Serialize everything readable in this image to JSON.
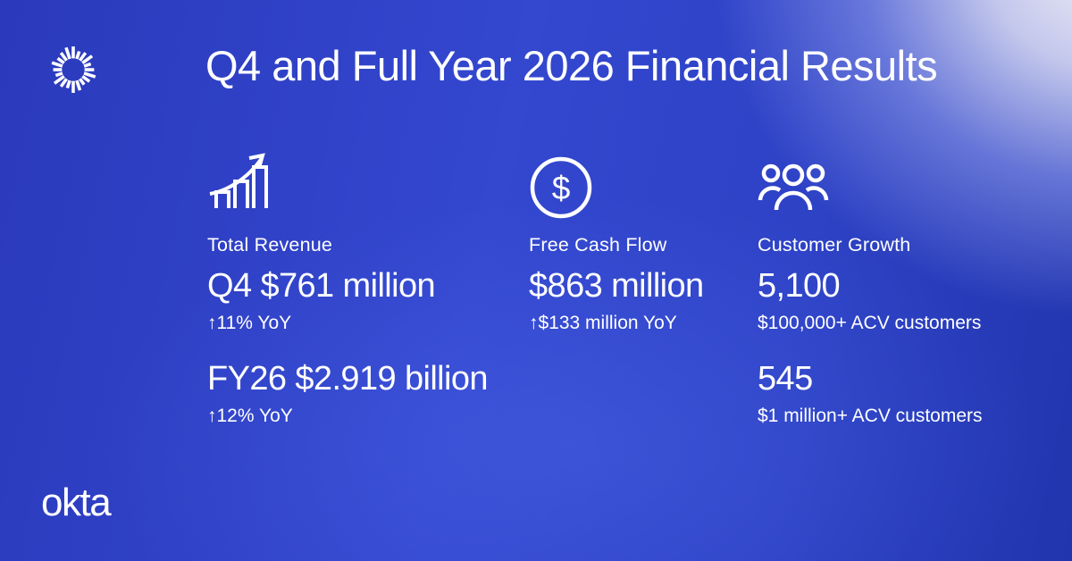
{
  "brand": {
    "logo_icon": "okta-sunburst-logo",
    "wordmark": "okta"
  },
  "header": {
    "title": "Q4 and Full Year 2026 Financial Results"
  },
  "metrics": [
    {
      "icon": "bar-chart-growth-icon",
      "label": "Total Revenue",
      "values": [
        {
          "value": "Q4 $761 million",
          "change": "↑11% YoY"
        },
        {
          "value": "FY26 $2.919 billion",
          "change": "↑12% YoY"
        }
      ]
    },
    {
      "icon": "dollar-circle-icon",
      "label": "Free Cash Flow",
      "values": [
        {
          "value": "$863 million",
          "change": "↑$133 million YoY"
        }
      ]
    },
    {
      "icon": "people-icon",
      "label": "Customer Growth",
      "values": [
        {
          "value": "5,100",
          "change": "$100,000+ ACV customers"
        },
        {
          "value": "545",
          "change": "$1 million+ ACV customers"
        }
      ]
    }
  ],
  "colors": {
    "background_left": "#2b3abc",
    "background_center": "#3a50d6",
    "background_bottom_right": "#2135ae",
    "background_corner_light": "#eeedf6",
    "text": "#ffffff"
  }
}
